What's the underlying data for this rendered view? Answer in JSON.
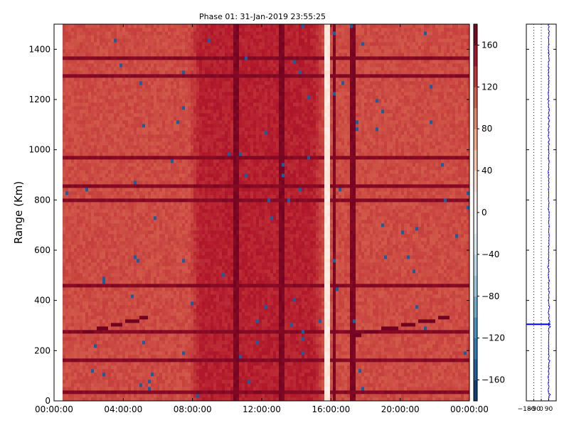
{
  "chart_data": [
    {
      "type": "heatmap",
      "title": "Phase 01: 31-Jan-2019 23:55:25",
      "xlabel": "",
      "ylabel": "Range (Km)",
      "x_ticks": [
        "00:00:00",
        "04:00:00",
        "08:00:00",
        "12:00:00",
        "16:00:00",
        "20:00:00",
        "00:00:00"
      ],
      "xlim_hours": [
        0,
        24
      ],
      "y_ticks": [
        0,
        200,
        400,
        600,
        800,
        1000,
        1200,
        1400
      ],
      "ylim": [
        0,
        1500
      ],
      "colorbar": {
        "ticks": [
          -160,
          -120,
          -80,
          -40,
          0,
          40,
          80,
          120,
          160
        ],
        "vmin": -180,
        "vmax": 180,
        "colormap": "RdBu_r",
        "colors": [
          "#053061",
          "#2166ac",
          "#4393c3",
          "#92c5de",
          "#d1e5f0",
          "#f7f7f7",
          "#fddbc7",
          "#f4a582",
          "#d6604d",
          "#b2182b",
          "#67001f"
        ]
      },
      "data_start_hour": 0.4,
      "night_phase_deg": 118,
      "day_window_hours": [
        7.8,
        15.6
      ],
      "day_phase_deg": 140,
      "echo_bands_km": [
        30,
        160,
        270,
        455,
        805,
        860,
        975,
        1300,
        1368
      ],
      "echo_phase_deg": 170,
      "dark_columns_hours": [
        10.5,
        13.2,
        16.2,
        17.3
      ],
      "bright_column_hour": 15.8,
      "bright_column_phase_deg": 10,
      "drift_features": [
        {
          "x_hours": [
            1.5,
            5.5
          ],
          "range_km": [
            268,
            335
          ]
        },
        {
          "x_hours": [
            17.5,
            22.8
          ],
          "range_km": [
            265,
            335
          ]
        }
      ]
    },
    {
      "type": "line",
      "title": "",
      "xlabel": "",
      "ylabel": "",
      "x_ticks": [
        "-180",
        "-90",
        "0",
        "90"
      ],
      "xlim": [
        -180,
        180
      ],
      "ylim": [
        0,
        1500
      ],
      "series_color": "#0000ff",
      "mean_phase_deg": 90,
      "spike_range_km": 305,
      "spike_min_deg": -180,
      "spike_max_deg": 110
    }
  ]
}
